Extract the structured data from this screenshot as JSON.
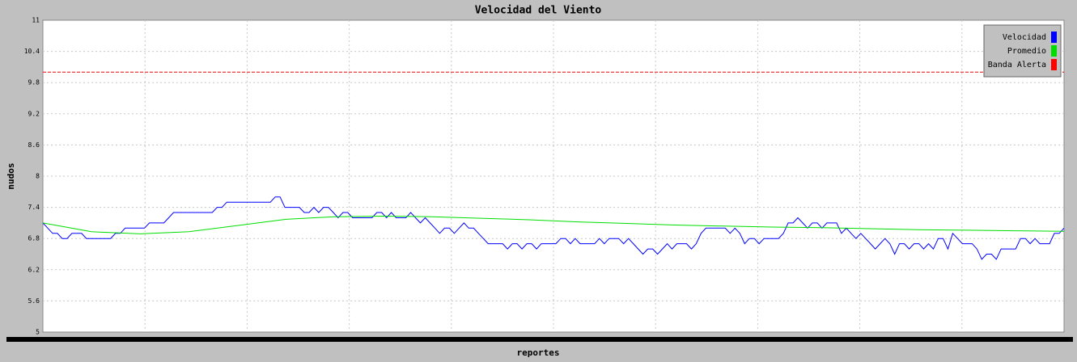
{
  "chart_data": {
    "type": "line",
    "title": "Velocidad del Viento",
    "y_label": "nudos",
    "x_label": "reportes",
    "ylim": [
      5,
      11
    ],
    "yticks": [
      5,
      5.6,
      6.2,
      6.8,
      7.4,
      8,
      8.6,
      9.2,
      9.8,
      10.4,
      11
    ],
    "grid": true,
    "legend": "top-right",
    "series": [
      {
        "name": "Velocidad",
        "color": "#0000ff",
        "values": [
          7.1,
          7.0,
          6.9,
          6.9,
          6.8,
          6.8,
          6.9,
          6.9,
          6.9,
          6.8,
          6.8,
          6.8,
          6.8,
          6.8,
          6.8,
          6.9,
          6.9,
          7.0,
          7.0,
          7.0,
          7.0,
          7.0,
          7.1,
          7.1,
          7.1,
          7.1,
          7.2,
          7.3,
          7.3,
          7.3,
          7.3,
          7.3,
          7.3,
          7.3,
          7.3,
          7.3,
          7.4,
          7.4,
          7.5,
          7.5,
          7.5,
          7.5,
          7.5,
          7.5,
          7.5,
          7.5,
          7.5,
          7.5,
          7.6,
          7.6,
          7.4,
          7.4,
          7.4,
          7.4,
          7.3,
          7.3,
          7.4,
          7.3,
          7.4,
          7.4,
          7.3,
          7.2,
          7.3,
          7.3,
          7.2,
          7.2,
          7.2,
          7.2,
          7.2,
          7.3,
          7.3,
          7.2,
          7.3,
          7.2,
          7.2,
          7.2,
          7.3,
          7.2,
          7.1,
          7.2,
          7.1,
          7.0,
          6.9,
          7.0,
          7.0,
          6.9,
          7.0,
          7.1,
          7.0,
          7.0,
          6.9,
          6.8,
          6.7,
          6.7,
          6.7,
          6.7,
          6.6,
          6.7,
          6.7,
          6.6,
          6.7,
          6.7,
          6.6,
          6.7,
          6.7,
          6.7,
          6.7,
          6.8,
          6.8,
          6.7,
          6.8,
          6.7,
          6.7,
          6.7,
          6.7,
          6.8,
          6.7,
          6.8,
          6.8,
          6.8,
          6.7,
          6.8,
          6.7,
          6.6,
          6.5,
          6.6,
          6.6,
          6.5,
          6.6,
          6.7,
          6.6,
          6.7,
          6.7,
          6.7,
          6.6,
          6.7,
          6.9,
          7.0,
          7.0,
          7.0,
          7.0,
          7.0,
          6.9,
          7.0,
          6.9,
          6.7,
          6.8,
          6.8,
          6.7,
          6.8,
          6.8,
          6.8,
          6.8,
          6.9,
          7.1,
          7.1,
          7.2,
          7.1,
          7.0,
          7.1,
          7.1,
          7.0,
          7.1,
          7.1,
          7.1,
          6.9,
          7.0,
          6.9,
          6.8,
          6.9,
          6.8,
          6.7,
          6.6,
          6.7,
          6.8,
          6.7,
          6.5,
          6.7,
          6.7,
          6.6,
          6.7,
          6.7,
          6.6,
          6.7,
          6.6,
          6.8,
          6.8,
          6.6,
          6.9,
          6.8,
          6.7,
          6.7,
          6.7,
          6.6,
          6.4,
          6.5,
          6.5,
          6.4,
          6.6,
          6.6,
          6.6,
          6.6,
          6.8,
          6.8,
          6.7,
          6.8,
          6.7,
          6.7,
          6.7,
          6.9,
          6.9,
          7.0
        ]
      },
      {
        "name": "Promedio",
        "color": "#00dd00",
        "values": [
          7.1,
          6.93,
          6.89,
          6.93,
          7.05,
          7.17,
          7.22,
          7.23,
          7.22,
          7.19,
          7.16,
          7.12,
          7.09,
          7.06,
          7.04,
          7.02,
          7.01,
          6.99,
          6.97,
          6.96,
          6.95,
          6.94
        ]
      },
      {
        "name": "Banda Alerta",
        "color": "#ff0000",
        "dashed": true,
        "values": [
          10,
          10
        ]
      }
    ]
  }
}
